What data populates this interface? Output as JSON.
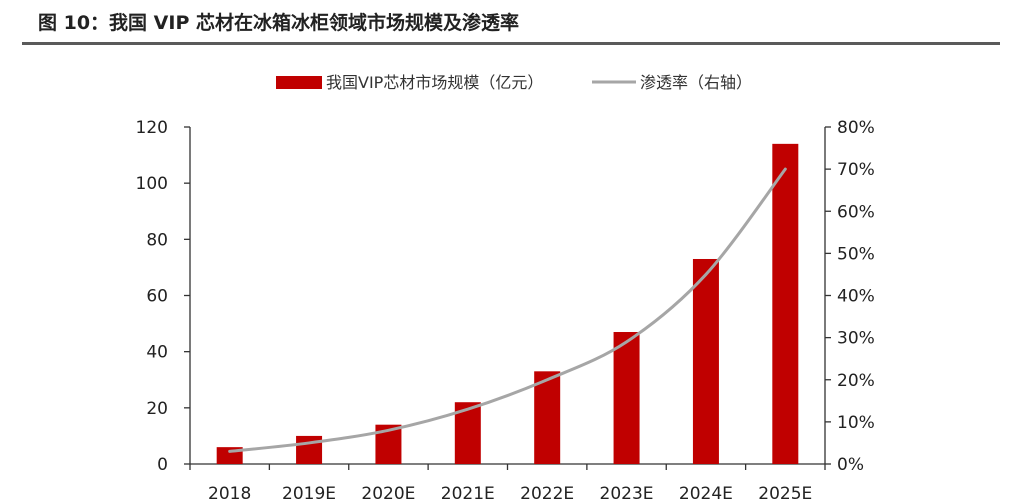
{
  "figure": {
    "title": "图 10：我国 VIP 芯材在冰箱冰柜领域市场规模及渗透率"
  },
  "chart_data": {
    "type": "bar",
    "categories": [
      "2018",
      "2019E",
      "2020E",
      "2021E",
      "2022E",
      "2023E",
      "2024E",
      "2025E"
    ],
    "series": [
      {
        "name": "我国VIP芯材市场规模（亿元）",
        "type": "bar",
        "axis": "left",
        "color": "#c00000",
        "values": [
          6,
          10,
          14,
          22,
          33,
          47,
          73,
          114
        ]
      },
      {
        "name": "渗透率（右轴）",
        "type": "line",
        "axis": "right",
        "color": "#a6a6a6",
        "values": [
          3,
          5,
          8,
          13,
          20,
          29,
          45,
          70
        ]
      }
    ],
    "left_axis": {
      "ylim": [
        0,
        120
      ],
      "ticks": [
        "0",
        "20",
        "40",
        "60",
        "80",
        "100",
        "120"
      ]
    },
    "right_axis": {
      "ylim": [
        0,
        80
      ],
      "ticks": [
        "0%",
        "10%",
        "20%",
        "30%",
        "40%",
        "50%",
        "60%",
        "70%",
        "80%"
      ]
    },
    "legend_position": "top-center",
    "grid": false
  }
}
